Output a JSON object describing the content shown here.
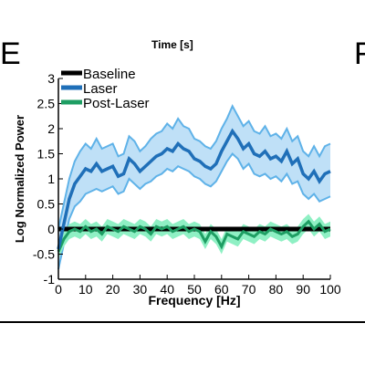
{
  "panels": {
    "left_letter": "E",
    "right_letter": "F"
  },
  "top_label": "Time [s]",
  "colors": {
    "baseline": "#000000",
    "laser": "#1f6fb8",
    "laser_band": "#bfe0f7",
    "laser_band_edge": "#5fb2e8",
    "post_laser": "#1e9e63",
    "post_laser_band": "#8ff0c4"
  },
  "chart_data": {
    "type": "line",
    "title": "",
    "xlabel": "Frequency [Hz]",
    "ylabel": "Log Normalized Power",
    "xlim": [
      0,
      100
    ],
    "ylim": [
      -1,
      3
    ],
    "xticks": [
      0,
      10,
      20,
      30,
      40,
      50,
      60,
      70,
      80,
      90,
      100
    ],
    "yticks": [
      -1,
      -0.5,
      0,
      0.5,
      1,
      1.5,
      2,
      2.5,
      3
    ],
    "ytick_labels": [
      "-1",
      "-0.5",
      "0",
      "0.5",
      "1",
      "1.5",
      "2",
      "2.5",
      "3"
    ],
    "grid": false,
    "legend_position": "top-left",
    "x": [
      0,
      2,
      4,
      6,
      8,
      10,
      12,
      14,
      16,
      18,
      20,
      22,
      24,
      26,
      28,
      30,
      32,
      34,
      36,
      38,
      40,
      42,
      44,
      46,
      48,
      50,
      52,
      54,
      56,
      58,
      60,
      62,
      64,
      66,
      68,
      70,
      72,
      74,
      76,
      78,
      80,
      82,
      84,
      86,
      88,
      90,
      92,
      94,
      96,
      98,
      100
    ],
    "series": [
      {
        "name": "Baseline",
        "color": "#000000",
        "values": [
          0,
          0,
          0,
          0,
          0,
          0,
          0,
          0,
          0,
          0,
          0,
          0,
          0,
          0,
          0,
          0,
          0,
          0,
          0,
          0,
          0,
          0,
          0,
          0,
          0,
          0,
          0,
          0,
          0,
          0,
          0,
          0,
          0,
          0,
          0,
          0,
          0,
          0,
          0,
          0,
          0,
          0,
          0,
          0,
          0,
          0,
          0,
          0,
          0,
          0,
          0
        ]
      },
      {
        "name": "Laser",
        "color": "#1f6fb8",
        "values": [
          -0.4,
          0.1,
          0.6,
          0.9,
          1.05,
          1.2,
          1.15,
          1.3,
          1.15,
          1.2,
          1.25,
          1.05,
          1.1,
          1.4,
          1.3,
          1.15,
          1.25,
          1.35,
          1.45,
          1.5,
          1.6,
          1.55,
          1.7,
          1.6,
          1.55,
          1.4,
          1.35,
          1.25,
          1.2,
          1.3,
          1.55,
          1.75,
          1.95,
          1.8,
          1.6,
          1.7,
          1.5,
          1.45,
          1.55,
          1.4,
          1.45,
          1.35,
          1.55,
          1.3,
          1.4,
          1.1,
          1.0,
          1.15,
          0.95,
          1.1,
          1.15
        ],
        "band_low": [
          -0.8,
          -0.3,
          0.2,
          0.45,
          0.55,
          0.7,
          0.75,
          0.8,
          0.75,
          0.8,
          0.85,
          0.7,
          0.75,
          1.0,
          0.9,
          0.8,
          0.9,
          0.95,
          1.05,
          1.1,
          1.2,
          1.15,
          1.25,
          1.2,
          1.15,
          1.05,
          1.0,
          0.9,
          0.85,
          0.95,
          1.15,
          1.35,
          1.5,
          1.4,
          1.2,
          1.3,
          1.1,
          1.05,
          1.1,
          1.0,
          1.05,
          0.95,
          1.1,
          0.9,
          0.95,
          0.7,
          0.6,
          0.7,
          0.55,
          0.6,
          0.65
        ],
        "band_high": [
          0.0,
          0.5,
          1.0,
          1.35,
          1.55,
          1.7,
          1.6,
          1.8,
          1.6,
          1.65,
          1.7,
          1.45,
          1.5,
          1.85,
          1.75,
          1.55,
          1.65,
          1.8,
          1.9,
          1.95,
          2.1,
          2.0,
          2.2,
          2.05,
          2.0,
          1.8,
          1.75,
          1.65,
          1.6,
          1.75,
          2.0,
          2.2,
          2.45,
          2.25,
          2.05,
          2.15,
          1.95,
          1.9,
          2.05,
          1.85,
          1.9,
          1.8,
          2.0,
          1.75,
          1.85,
          1.55,
          1.45,
          1.65,
          1.45,
          1.65,
          1.7
        ]
      },
      {
        "name": "Post-Laser",
        "color": "#1e9e63",
        "values": [
          -0.45,
          -0.2,
          -0.05,
          0.0,
          -0.05,
          0.05,
          -0.05,
          0.0,
          -0.1,
          0.05,
          0.0,
          -0.05,
          0.05,
          0.0,
          -0.05,
          0.05,
          0.0,
          -0.1,
          0.05,
          0.0,
          0.05,
          -0.05,
          0.0,
          0.05,
          -0.05,
          0.0,
          -0.05,
          -0.25,
          -0.05,
          -0.15,
          -0.35,
          -0.1,
          -0.15,
          -0.2,
          -0.05,
          -0.1,
          -0.15,
          -0.05,
          -0.1,
          0.0,
          -0.05,
          -0.1,
          -0.05,
          -0.15,
          -0.1,
          0.05,
          0.15,
          0.0,
          0.1,
          -0.05,
          0.0
        ],
        "band_low": [
          -0.6,
          -0.35,
          -0.2,
          -0.15,
          -0.2,
          -0.1,
          -0.2,
          -0.15,
          -0.25,
          -0.1,
          -0.15,
          -0.2,
          -0.1,
          -0.15,
          -0.2,
          -0.1,
          -0.15,
          -0.25,
          -0.1,
          -0.15,
          -0.1,
          -0.2,
          -0.15,
          -0.1,
          -0.2,
          -0.15,
          -0.2,
          -0.4,
          -0.2,
          -0.3,
          -0.5,
          -0.25,
          -0.3,
          -0.35,
          -0.2,
          -0.25,
          -0.3,
          -0.2,
          -0.25,
          -0.15,
          -0.2,
          -0.25,
          -0.2,
          -0.3,
          -0.25,
          -0.1,
          0.0,
          -0.15,
          -0.05,
          -0.2,
          -0.15
        ],
        "band_high": [
          -0.3,
          -0.05,
          0.1,
          0.15,
          0.1,
          0.2,
          0.1,
          0.15,
          0.05,
          0.2,
          0.15,
          0.1,
          0.2,
          0.15,
          0.1,
          0.2,
          0.15,
          0.05,
          0.2,
          0.15,
          0.2,
          0.1,
          0.15,
          0.2,
          0.1,
          0.15,
          0.1,
          -0.1,
          0.1,
          0.0,
          -0.2,
          0.05,
          0.0,
          -0.05,
          0.1,
          0.05,
          0.0,
          0.1,
          0.05,
          0.15,
          0.1,
          0.05,
          0.1,
          0.0,
          0.05,
          0.2,
          0.3,
          0.15,
          0.25,
          0.1,
          0.15
        ]
      }
    ]
  }
}
